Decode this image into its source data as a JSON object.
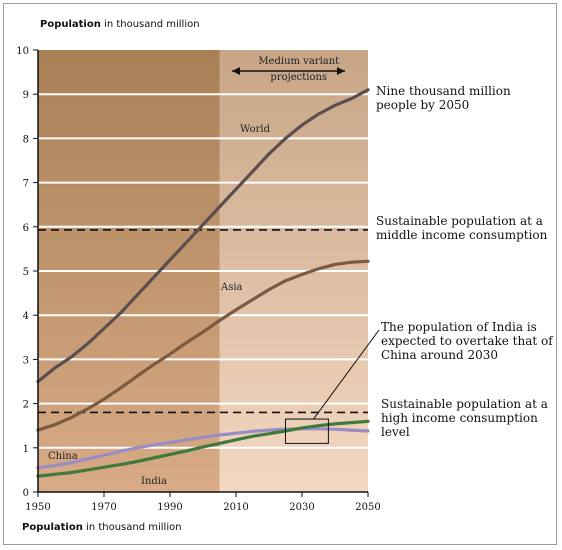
{
  "chart_data": {
    "type": "line",
    "title_bold": "Population",
    "title_rest": " in thousand million",
    "xlabel_bold": "Population",
    "xlabel_rest": " in thousand million",
    "xlim": [
      1950,
      2050
    ],
    "ylim": [
      0,
      10
    ],
    "x_ticks": [
      1950,
      1970,
      1990,
      2010,
      2030,
      2050
    ],
    "y_ticks": [
      0,
      1,
      2,
      3,
      4,
      5,
      6,
      7,
      8,
      9,
      10
    ],
    "grid": true,
    "projection_start": 2005,
    "projection_label": "Medium variant\nprojections",
    "series": [
      {
        "name": "World",
        "color": "#5a4f50",
        "x": [
          1950,
          1955,
          1960,
          1965,
          1970,
          1975,
          1980,
          1985,
          1990,
          1995,
          2000,
          2005,
          2010,
          2015,
          2020,
          2025,
          2030,
          2035,
          2040,
          2045,
          2050
        ],
        "y": [
          2.5,
          2.8,
          3.05,
          3.35,
          3.7,
          4.05,
          4.45,
          4.85,
          5.25,
          5.65,
          6.05,
          6.45,
          6.85,
          7.25,
          7.65,
          8.0,
          8.3,
          8.55,
          8.75,
          8.9,
          9.1
        ]
      },
      {
        "name": "Asia",
        "color": "#7a5a40",
        "x": [
          1950,
          1955,
          1960,
          1965,
          1970,
          1975,
          1980,
          1985,
          1990,
          1995,
          2000,
          2005,
          2010,
          2015,
          2020,
          2025,
          2030,
          2035,
          2040,
          2045,
          2050
        ],
        "y": [
          1.4,
          1.52,
          1.68,
          1.88,
          2.1,
          2.35,
          2.62,
          2.88,
          3.12,
          3.38,
          3.62,
          3.88,
          4.12,
          4.35,
          4.58,
          4.78,
          4.92,
          5.05,
          5.15,
          5.2,
          5.22
        ]
      },
      {
        "name": "China",
        "color": "#9a8cc4",
        "x": [
          1950,
          1955,
          1960,
          1965,
          1970,
          1975,
          1980,
          1985,
          1990,
          1995,
          2000,
          2005,
          2010,
          2015,
          2020,
          2025,
          2030,
          2035,
          2040,
          2045,
          2050
        ],
        "y": [
          0.55,
          0.6,
          0.66,
          0.75,
          0.83,
          0.92,
          1.0,
          1.06,
          1.12,
          1.18,
          1.24,
          1.29,
          1.33,
          1.37,
          1.4,
          1.42,
          1.43,
          1.43,
          1.42,
          1.4,
          1.38
        ]
      },
      {
        "name": "India",
        "color": "#3f7a3c",
        "x": [
          1950,
          1955,
          1960,
          1965,
          1970,
          1975,
          1980,
          1985,
          1990,
          1995,
          2000,
          2005,
          2010,
          2015,
          2020,
          2025,
          2030,
          2035,
          2040,
          2045,
          2050
        ],
        "y": [
          0.36,
          0.4,
          0.44,
          0.5,
          0.56,
          0.62,
          0.69,
          0.77,
          0.85,
          0.93,
          1.02,
          1.1,
          1.18,
          1.26,
          1.32,
          1.38,
          1.45,
          1.5,
          1.54,
          1.57,
          1.6
        ]
      }
    ],
    "thresholds": [
      {
        "name": "middle",
        "value": 5.93,
        "label": "Sustainable population at a\nmiddle income consumption"
      },
      {
        "name": "high",
        "value": 1.8,
        "label": "Sustainable population at a\nhigh income consumption\nlevel"
      }
    ],
    "annotations": {
      "world_label": "World",
      "asia_label": "Asia",
      "china_label": "China",
      "india_label": "India",
      "nine_thousand": "Nine thousand million\npeople by 2050",
      "overtake": "The population of India is\nexpected to overtake that of\nChina around 2030"
    },
    "overtake_box": {
      "x0": 2025,
      "x1": 2038,
      "y0": 1.1,
      "y1": 1.65
    },
    "colors": {
      "historic_top": "#a88056",
      "historic_bottom": "#d8ab86",
      "projection_top": "#c8a586",
      "projection_bottom": "#f4d8c2",
      "gridline": "#ffffff",
      "dashed": "#111111"
    }
  }
}
